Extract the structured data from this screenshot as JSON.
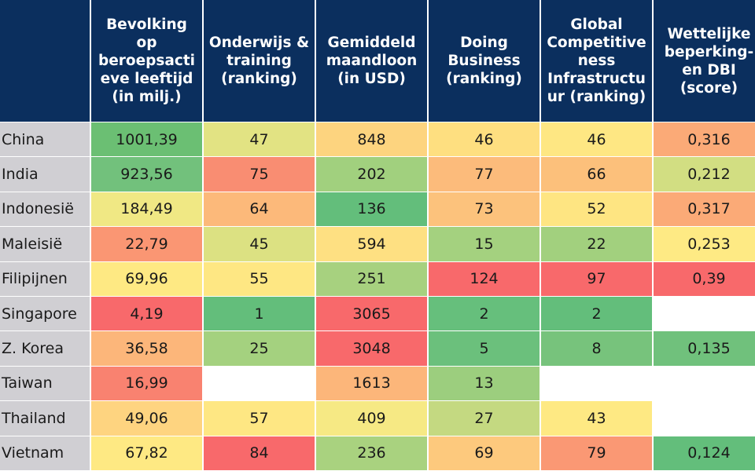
{
  "chart_data": {
    "type": "table",
    "columns": [
      "Bevolking\nop\nberoepsacti\neve leeftijd\n(in milj.)",
      "Onderwijs &\ntraining\n(ranking)",
      "Gemiddeld\nmaandloon\n(in USD)",
      "Doing\nBusiness\n(ranking)",
      "Global\nCompetitive\nness\nInfrastructu\nur (ranking)",
      "Wettelijke\nbeperking-\nen DBI\n(score)"
    ],
    "rows": [
      {
        "label": "China",
        "values": [
          "1001,39",
          "47",
          "848",
          "46",
          "46",
          "0,316"
        ],
        "colors": [
          "#6bbf73",
          "#e2e383",
          "#fdd47f",
          "#fedf80",
          "#fee783",
          "#fbaa77"
        ]
      },
      {
        "label": "India",
        "values": [
          "923,56",
          "75",
          "202",
          "77",
          "66",
          "0,212"
        ],
        "colors": [
          "#72c17c",
          "#f98d72",
          "#a1d07e",
          "#fcbb7b",
          "#fcc07b",
          "#d2de82"
        ]
      },
      {
        "label": "Indonesië",
        "values": [
          "184,49",
          "64",
          "136",
          "73",
          "52",
          "0,317"
        ],
        "colors": [
          "#f0e884",
          "#fcb97a",
          "#63be7b",
          "#fcc27c",
          "#fee582",
          "#fbaa77"
        ]
      },
      {
        "label": "Maleisië",
        "values": [
          "22,79",
          "45",
          "594",
          "15",
          "22",
          "0,253"
        ],
        "colors": [
          "#fa9673",
          "#dce182",
          "#fee082",
          "#a4d17f",
          "#a2d07e",
          "#feea84"
        ]
      },
      {
        "label": "Filipijnen",
        "values": [
          "69,96",
          "55",
          "251",
          "124",
          "97",
          "0,39"
        ],
        "colors": [
          "#fee983",
          "#fee783",
          "#a7d17f",
          "#f8696b",
          "#f8696b",
          "#f8696b"
        ]
      },
      {
        "label": "Singapore",
        "values": [
          "4,19",
          "1",
          "3065",
          "2",
          "2",
          ""
        ],
        "colors": [
          "#f8696b",
          "#63be7b",
          "#f8696b",
          "#66bf7c",
          "#63be7b",
          "#ffffff"
        ]
      },
      {
        "label": "Z. Korea",
        "values": [
          "36,58",
          "25",
          "3048",
          "5",
          "8",
          "0,135"
        ],
        "colors": [
          "#fcb67a",
          "#a4d17f",
          "#f8696b",
          "#6bc07c",
          "#77c37c",
          "#70c17c"
        ]
      },
      {
        "label": "Taiwan",
        "values": [
          "16,99",
          "",
          "1613",
          "13",
          "",
          ""
        ],
        "colors": [
          "#f98270",
          "#ffffff",
          "#fcb67a",
          "#9cce7e",
          "#ffffff",
          "#ffffff"
        ]
      },
      {
        "label": "Thailand",
        "values": [
          "49,06",
          "57",
          "409",
          "27",
          "43",
          ""
        ],
        "colors": [
          "#fed480",
          "#fee783",
          "#f6e984",
          "#c4d981",
          "#fee983",
          "#ffffff"
        ]
      },
      {
        "label": "Vietnam",
        "values": [
          "67,82",
          "84",
          "236",
          "69",
          "79",
          "0,124"
        ],
        "colors": [
          "#fee983",
          "#f8696b",
          "#a9d27f",
          "#fdc97d",
          "#fa9874",
          "#63be7b"
        ]
      }
    ]
  }
}
